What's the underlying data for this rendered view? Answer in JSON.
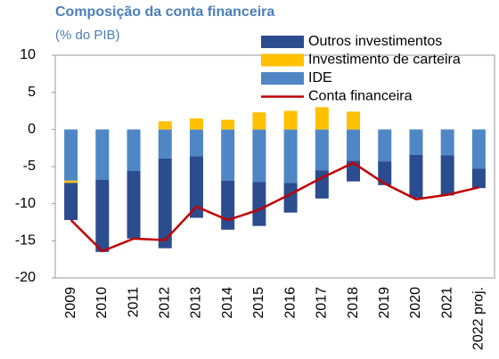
{
  "chart_data": {
    "type": "bar",
    "stacked": true,
    "title": "Composição da conta financeira",
    "subtitle": "(% do PIB)",
    "categories": [
      "2009",
      "2010",
      "2011",
      "2012",
      "2013",
      "2014",
      "2015",
      "2016",
      "2017",
      "2018",
      "2019",
      "2020",
      "2021",
      "2022 proj."
    ],
    "series": [
      {
        "name": "Outros investimentos",
        "color": "#2b4c8e",
        "values": [
          -5.0,
          -9.7,
          -9.1,
          -12.1,
          -8.3,
          -6.6,
          -5.9,
          -4.0,
          -3.8,
          -2.8,
          -3.2,
          -5.8,
          -5.4,
          -2.6
        ]
      },
      {
        "name": "Investimento de carteira",
        "color": "#ffc000",
        "values": [
          -0.3,
          0,
          0,
          1.1,
          1.5,
          1.3,
          2.3,
          2.5,
          3.0,
          2.4,
          0,
          0,
          0,
          0
        ]
      },
      {
        "name": "IDE",
        "color": "#4f86c6",
        "values": [
          -6.9,
          -6.8,
          -5.6,
          -3.9,
          -3.6,
          -6.9,
          -7.1,
          -7.2,
          -5.5,
          -4.2,
          -4.3,
          -3.4,
          -3.5,
          -5.3
        ]
      },
      {
        "name": "Conta financeira",
        "type": "line",
        "color": "#c00000",
        "values": [
          -12.2,
          -16.4,
          -14.7,
          -14.9,
          -10.4,
          -12.2,
          -10.8,
          -8.7,
          -6.5,
          -4.5,
          -7.3,
          -9.4,
          -8.8,
          -7.8
        ]
      }
    ],
    "ylim": [
      -20,
      10
    ],
    "yticks": [
      10,
      5,
      0,
      -5,
      -10,
      -15,
      -20
    ],
    "grid": false,
    "legend": "top-right"
  }
}
